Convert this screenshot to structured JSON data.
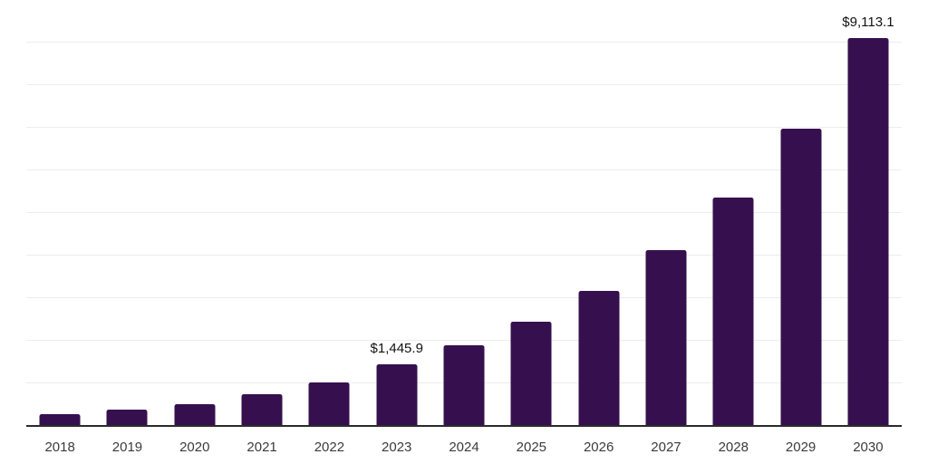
{
  "chart_data": {
    "type": "bar",
    "title": "",
    "xlabel": "",
    "ylabel": "",
    "categories": [
      "2018",
      "2019",
      "2020",
      "2021",
      "2022",
      "2023",
      "2024",
      "2025",
      "2026",
      "2027",
      "2028",
      "2029",
      "2030"
    ],
    "values": [
      275,
      380,
      515,
      740,
      1020,
      1445.9,
      1890,
      2440,
      3170,
      4120,
      5360,
      6970,
      9113.1
    ],
    "value_labels": {
      "2023": "$1,445.9",
      "2030": "$9,113.1"
    },
    "ylim": [
      0,
      10000
    ],
    "gridline_step": 1000,
    "grid": "horizontal",
    "legend": "none",
    "colors": {
      "bar": "#36104e",
      "gridline": "#ededed",
      "axis_line": "#2b2b2b",
      "tick_label": "#3b3b3b",
      "data_label": "#111111",
      "background": "#ffffff"
    }
  }
}
